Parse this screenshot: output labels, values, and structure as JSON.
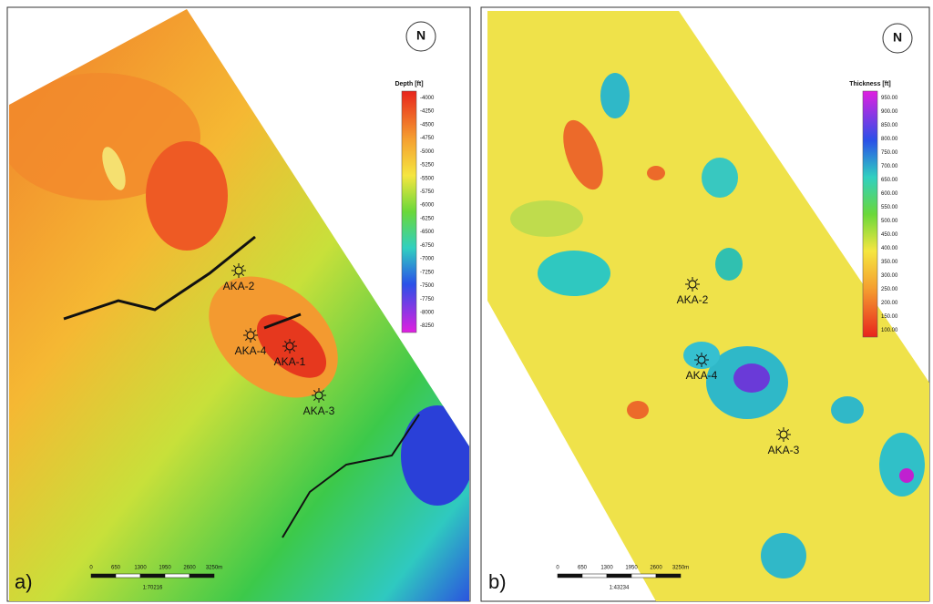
{
  "panels": [
    {
      "label": "a)",
      "north": "N",
      "legend": {
        "title": "Depth [ft]",
        "ticks": [
          "-4000",
          "-4250",
          "-4500",
          "-4750",
          "-5000",
          "-5250",
          "-5500",
          "-5750",
          "-6000",
          "-6250",
          "-6500",
          "-6750",
          "-7000",
          "-7250",
          "-7500",
          "-7750",
          "-8000",
          "-8250"
        ]
      },
      "wells": [
        "AKA-2",
        "AKA-4",
        "AKA-1",
        "AKA-3"
      ],
      "scale": {
        "ticks": [
          "0",
          "650",
          "1300",
          "1950",
          "2600",
          "3250m"
        ],
        "ratio": "1:70216"
      }
    },
    {
      "label": "b)",
      "north": "N",
      "legend": {
        "title": "Thickness [ft]",
        "ticks": [
          "950.00",
          "900.00",
          "850.00",
          "800.00",
          "750.00",
          "700.00",
          "650.00",
          "600.00",
          "550.00",
          "500.00",
          "450.00",
          "400.00",
          "350.00",
          "300.00",
          "250.00",
          "200.00",
          "150.00",
          "100.00"
        ]
      },
      "wells": [
        "AKA-2",
        "AKA-4",
        "AKA-3"
      ],
      "scale": {
        "ticks": [
          "0",
          "650",
          "1300",
          "1950",
          "2600",
          "3250m"
        ],
        "ratio": "1:43234"
      }
    }
  ]
}
